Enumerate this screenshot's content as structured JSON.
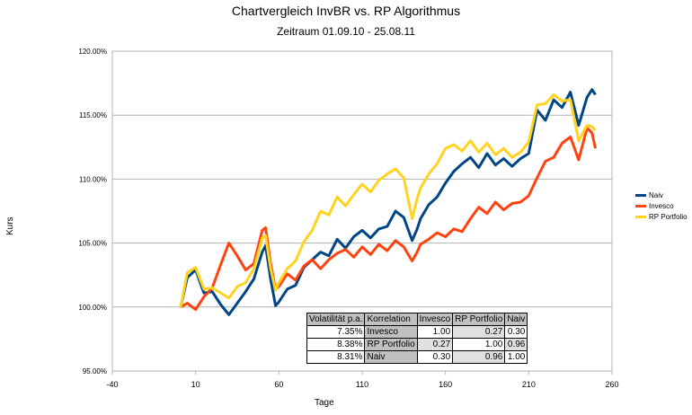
{
  "chart_data": {
    "type": "line",
    "title": "Chartvergleich InvBR vs. RP Algorithmus",
    "subtitle": "Zeitraum 01.09.10 - 25.08.11",
    "xlabel": "Tage",
    "ylabel": "Kurs",
    "xlim": [
      -40,
      260
    ],
    "ylim": [
      95,
      120
    ],
    "x_ticks": [
      -40,
      10,
      60,
      110,
      160,
      210,
      260
    ],
    "y_ticks": [
      95,
      100,
      105,
      110,
      115,
      120
    ],
    "y_tick_labels": [
      "95.00%",
      "100.00%",
      "105.00%",
      "110.00%",
      "115.00%",
      "120.00%"
    ],
    "grid": "horizontal",
    "legend_position": "right",
    "series": [
      {
        "name": "Naiv",
        "color": "#004586",
        "x": [
          1,
          5,
          10,
          15,
          20,
          25,
          30,
          35,
          40,
          45,
          50,
          52,
          55,
          58,
          60,
          65,
          70,
          75,
          80,
          85,
          90,
          95,
          100,
          105,
          110,
          115,
          120,
          125,
          130,
          135,
          140,
          143,
          145,
          150,
          155,
          160,
          165,
          170,
          175,
          180,
          185,
          190,
          195,
          200,
          205,
          210,
          215,
          220,
          225,
          230,
          235,
          240,
          245,
          248,
          250
        ],
        "values": [
          100.0,
          102.3,
          102.9,
          101.1,
          101.2,
          100.2,
          99.4,
          100.3,
          101.2,
          102.2,
          104.3,
          104.8,
          102.2,
          100.1,
          100.4,
          101.4,
          101.7,
          103.1,
          103.7,
          104.3,
          104.0,
          105.3,
          104.6,
          105.5,
          106.0,
          105.4,
          106.1,
          106.3,
          107.5,
          107.0,
          105.2,
          106.1,
          106.9,
          108.0,
          108.6,
          109.7,
          110.6,
          111.2,
          111.7,
          110.9,
          112.0,
          111.1,
          111.6,
          111.0,
          111.6,
          112.0,
          115.4,
          114.6,
          116.2,
          115.6,
          116.8,
          114.2,
          116.4,
          117.0,
          116.6
        ]
      },
      {
        "name": "Invesco",
        "color": "#ff420e",
        "x": [
          1,
          5,
          10,
          15,
          20,
          25,
          30,
          35,
          40,
          45,
          50,
          52,
          55,
          58,
          60,
          65,
          70,
          75,
          80,
          85,
          90,
          95,
          100,
          105,
          110,
          115,
          120,
          125,
          130,
          135,
          140,
          143,
          145,
          150,
          155,
          160,
          165,
          170,
          175,
          180,
          185,
          190,
          195,
          200,
          205,
          210,
          215,
          220,
          225,
          230,
          235,
          240,
          245,
          248,
          250
        ],
        "values": [
          100.0,
          100.3,
          99.8,
          100.8,
          101.5,
          103.3,
          105.0,
          104.0,
          102.9,
          103.4,
          106.0,
          106.2,
          103.4,
          101.4,
          101.6,
          102.6,
          102.1,
          103.2,
          103.7,
          103.0,
          103.7,
          104.2,
          104.5,
          103.9,
          104.7,
          104.1,
          104.9,
          104.4,
          105.2,
          104.7,
          103.6,
          104.3,
          104.9,
          105.3,
          105.8,
          105.5,
          106.1,
          105.9,
          106.9,
          107.8,
          107.3,
          108.2,
          107.6,
          108.1,
          108.2,
          108.7,
          110.1,
          111.4,
          111.7,
          112.8,
          113.3,
          111.5,
          114.0,
          113.6,
          112.4
        ]
      },
      {
        "name": "RP Portfolio",
        "color": "#ffd320",
        "x": [
          1,
          5,
          10,
          15,
          20,
          25,
          30,
          35,
          40,
          45,
          50,
          52,
          55,
          58,
          60,
          65,
          70,
          75,
          80,
          85,
          90,
          95,
          100,
          105,
          110,
          115,
          120,
          125,
          130,
          135,
          140,
          143,
          145,
          150,
          155,
          160,
          165,
          170,
          175,
          180,
          185,
          190,
          195,
          200,
          205,
          210,
          215,
          220,
          225,
          230,
          235,
          240,
          245,
          248,
          250
        ],
        "values": [
          100.0,
          102.7,
          103.1,
          101.4,
          101.5,
          101.1,
          100.7,
          101.6,
          101.9,
          103.0,
          105.4,
          105.6,
          103.0,
          101.3,
          101.9,
          103.0,
          103.6,
          105.1,
          106.0,
          107.5,
          107.2,
          108.6,
          107.9,
          108.8,
          109.6,
          109.0,
          109.9,
          110.4,
          110.8,
          110.1,
          106.9,
          108.5,
          109.3,
          110.4,
          111.2,
          112.4,
          112.7,
          112.2,
          113.0,
          112.1,
          112.8,
          111.9,
          112.4,
          111.7,
          112.1,
          112.9,
          115.8,
          115.9,
          116.6,
          116.1,
          116.2,
          113.0,
          114.2,
          114.1,
          113.8
        ]
      }
    ]
  },
  "stats_table": {
    "headers": [
      "Volatilität p.a.",
      "Korrelation",
      "Invesco",
      "RP Portfolio",
      "Naiv"
    ],
    "rows": [
      {
        "vol": "7.35%",
        "name": "Invesco",
        "c1": "1.00",
        "c2": "0.27",
        "c3": "0.30"
      },
      {
        "vol": "8.38%",
        "name": "RP Portfolio",
        "c1": "0.27",
        "c2": "1.00",
        "c3": "0.96"
      },
      {
        "vol": "8.31%",
        "name": "Naiv",
        "c1": "0.30",
        "c2": "0.96",
        "c3": "1.00"
      }
    ]
  }
}
